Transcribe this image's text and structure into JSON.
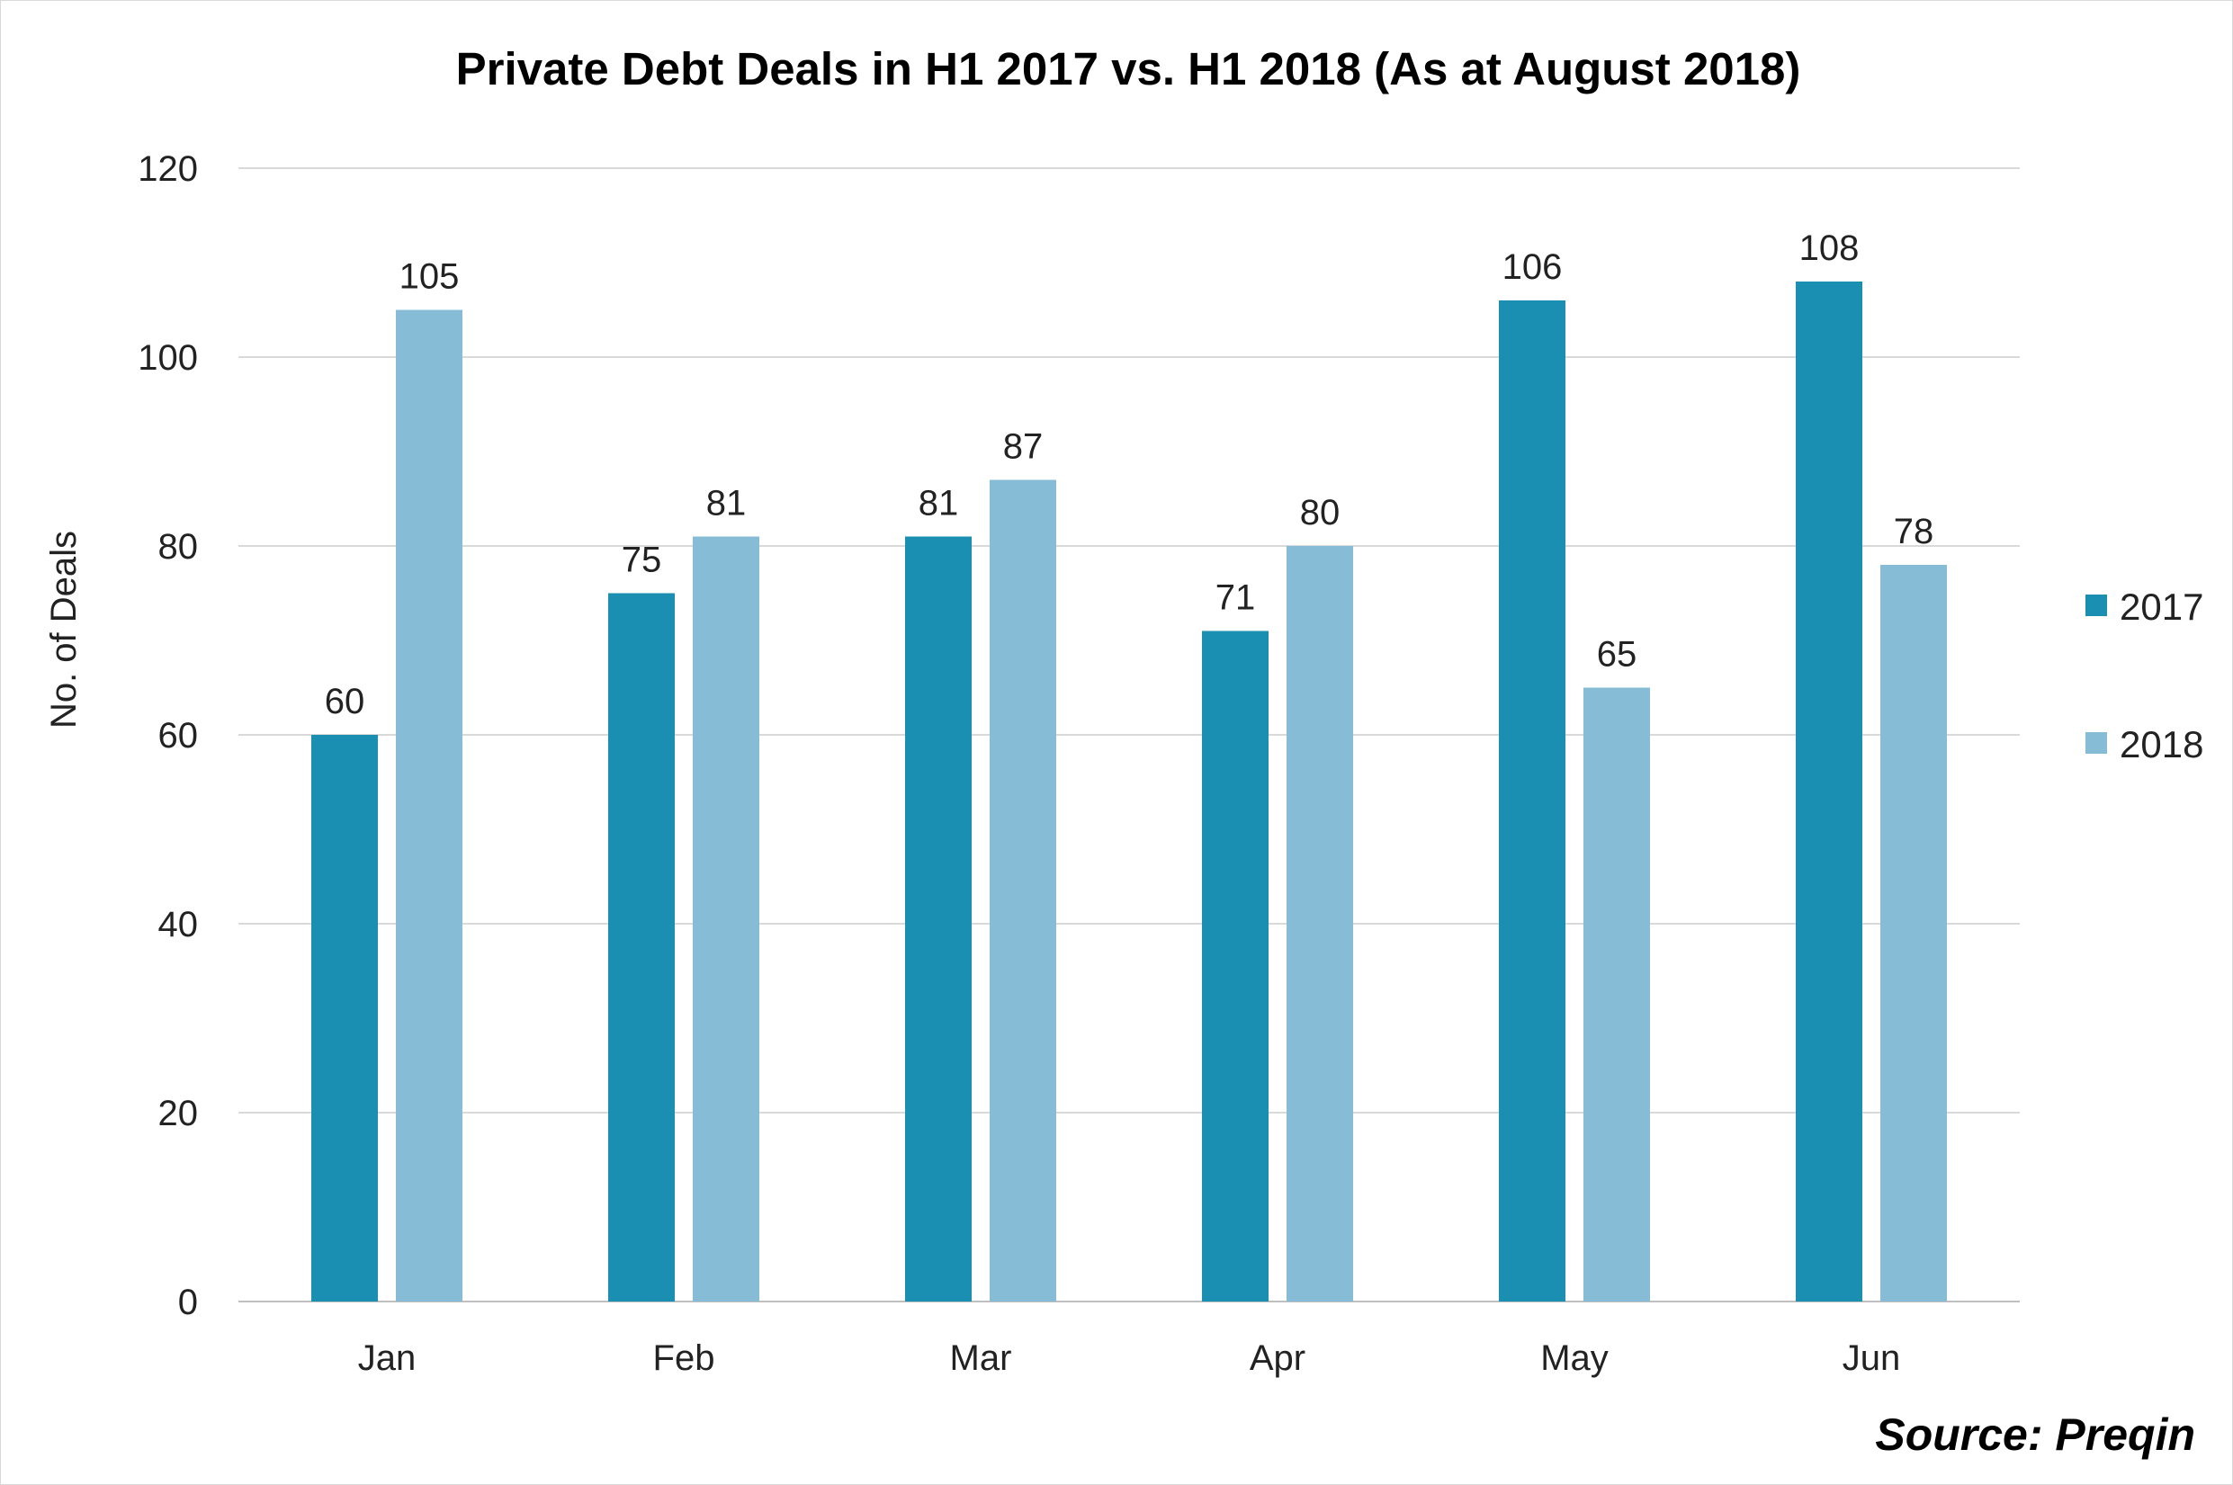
{
  "colors": {
    "series_2017": "#1a8fb1",
    "series_2018": "#86bcd6"
  },
  "source": "Source: Preqin",
  "chart_data": {
    "type": "bar",
    "title": "Private Debt Deals in H1 2017 vs. H1 2018 (As at August 2018)",
    "xlabel": "",
    "ylabel": "No. of Deals",
    "categories": [
      "Jan",
      "Feb",
      "Mar",
      "Apr",
      "May",
      "Jun"
    ],
    "series": [
      {
        "name": "2017",
        "values": [
          60,
          75,
          81,
          71,
          106,
          108
        ]
      },
      {
        "name": "2018",
        "values": [
          105,
          81,
          87,
          80,
          65,
          78
        ]
      }
    ],
    "ylim": [
      0,
      120
    ],
    "yticks": [
      0,
      20,
      40,
      60,
      80,
      100,
      120
    ],
    "grid": true,
    "legend_position": "right"
  }
}
